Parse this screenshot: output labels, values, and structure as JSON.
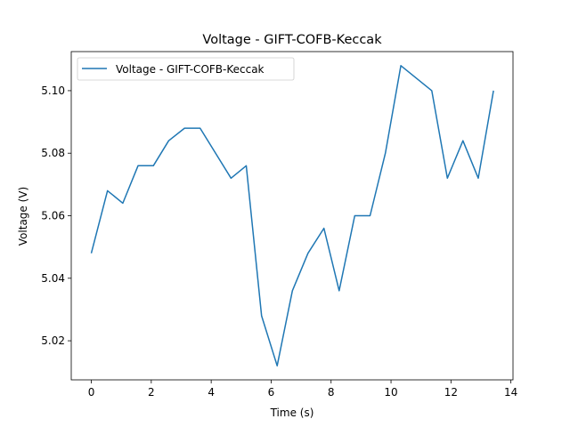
{
  "chart_data": {
    "type": "line",
    "title": "Voltage - GIFT-COFB-Keccak",
    "xlabel": "Time (s)",
    "ylabel": "Voltage (V)",
    "xlim": [
      -0.67,
      14.07
    ],
    "ylim": [
      5.0075,
      5.1125
    ],
    "xticks": [
      0,
      2,
      4,
      6,
      8,
      10,
      12,
      14
    ],
    "xtick_labels": [
      "0",
      "2",
      "4",
      "6",
      "8",
      "10",
      "12",
      "14"
    ],
    "yticks": [
      5.02,
      5.04,
      5.06,
      5.08,
      5.1
    ],
    "ytick_labels": [
      "5.02",
      "5.04",
      "5.06",
      "5.08",
      "5.10"
    ],
    "grid": false,
    "legend_position": "upper-left",
    "series": [
      {
        "name": "Voltage - GIFT-COFB-Keccak",
        "color": "#1f77b4",
        "x": [
          0.0,
          0.54,
          1.05,
          1.56,
          2.07,
          2.58,
          3.11,
          3.63,
          4.66,
          5.17,
          5.68,
          6.2,
          6.71,
          7.23,
          7.76,
          8.27,
          8.79,
          9.3,
          9.81,
          10.33,
          11.36,
          11.88,
          12.4,
          12.91,
          13.42
        ],
        "y": [
          5.048,
          5.068,
          5.064,
          5.076,
          5.076,
          5.084,
          5.088,
          5.088,
          5.072,
          5.076,
          5.028,
          5.012,
          5.036,
          5.048,
          5.056,
          5.036,
          5.06,
          5.06,
          5.08,
          5.108,
          5.1,
          5.072,
          5.084,
          5.072,
          5.1
        ]
      }
    ]
  }
}
